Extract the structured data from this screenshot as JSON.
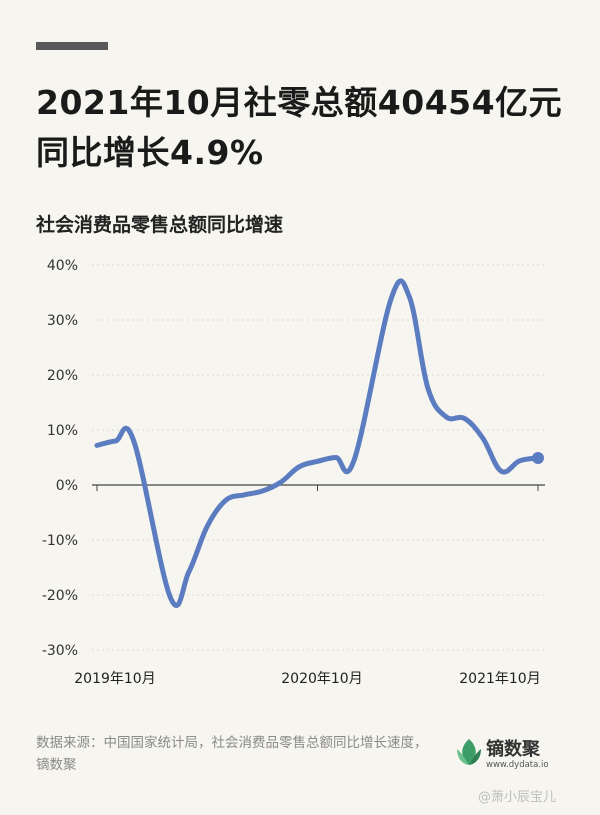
{
  "headline": {
    "line1": "2021年10月社零总额40454亿元",
    "line2": "同比增长4.9%"
  },
  "chart_title": "社会消费品零售总额同比增速",
  "chart_data": {
    "type": "line",
    "title": "社会消费品零售总额同比增速",
    "y_ticks": [
      "40%",
      "30%",
      "20%",
      "10%",
      "0%",
      "-10%",
      "-20%",
      "-30%"
    ],
    "ylim": [
      -30,
      40
    ],
    "x_ticks": [
      "2019年10月",
      "2020年10月",
      "2021年10月"
    ],
    "x": [
      "2019-10",
      "2019-11",
      "2019-12",
      "2020-02",
      "2020-03",
      "2020-04",
      "2020-05",
      "2020-06",
      "2020-07",
      "2020-08",
      "2020-09",
      "2020-10",
      "2020-11",
      "2020-12",
      "2021-02",
      "2021-03",
      "2021-04",
      "2021-05",
      "2021-06",
      "2021-07",
      "2021-08",
      "2021-09",
      "2021-10"
    ],
    "values": [
      7.2,
      8.0,
      8.0,
      -20.5,
      -15.8,
      -7.5,
      -2.8,
      -1.8,
      -1.1,
      0.5,
      3.3,
      4.3,
      5.0,
      4.6,
      33.8,
      34.2,
      17.7,
      12.4,
      12.1,
      8.5,
      2.5,
      4.4,
      4.9
    ],
    "series_color": "#5b7cc0",
    "grid": true
  },
  "source": "数据来源：中国国家统计局，社会消费品零售总额同比增长速度，镝数聚",
  "logo": {
    "name": "镝数聚",
    "url": "www.dydata.io",
    "brand_color": "#3d9d67"
  },
  "watermark": "@萧小辰宝儿"
}
